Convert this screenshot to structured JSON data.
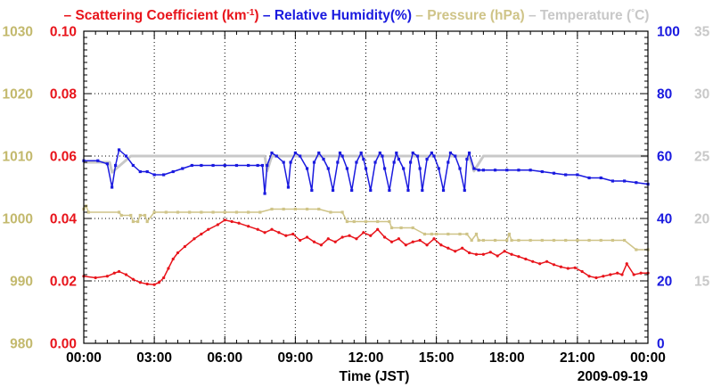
{
  "chart_data": {
    "type": "line",
    "title_parts": [
      {
        "dash": "–",
        "text": "Scattering Coefficient (km",
        "sup": "-1",
        "close": ")",
        "color": "#e8141b"
      },
      {
        "dash": "–",
        "text": "Relative Humidity(%)",
        "color": "#1a1adf"
      },
      {
        "dash": "–",
        "text": "Pressure (hPa)",
        "color": "#cfc488"
      },
      {
        "dash": "–",
        "text": "Temperature (",
        "deg": "°",
        "close": "C)",
        "color": "#c8c8c8"
      }
    ],
    "xlabel": "Time (JST)",
    "date_label": "2009-09-19",
    "x_ticks": [
      "00:00",
      "03:00",
      "06:00",
      "09:00",
      "12:00",
      "15:00",
      "18:00",
      "21:00",
      "00:00"
    ],
    "xlim": [
      0,
      24
    ],
    "axes": {
      "pressure": {
        "ticks": [
          "980",
          "990",
          "1000",
          "1010",
          "1020",
          "1030"
        ],
        "range": [
          980,
          1030
        ],
        "color": "#c3b96d"
      },
      "scattering": {
        "ticks": [
          "0.00",
          "0.02",
          "0.04",
          "0.06",
          "0.08",
          "0.10"
        ],
        "range": [
          0,
          0.1
        ],
        "color": "#e8141b"
      },
      "humidity": {
        "ticks": [
          "0",
          "20",
          "40",
          "60",
          "80",
          "100"
        ],
        "range": [
          0,
          100
        ],
        "color": "#1a1adf"
      },
      "temperature": {
        "ticks": [
          "15",
          "20",
          "25",
          "30",
          "35"
        ],
        "range": [
          10,
          35
        ],
        "color": "#c8c8c8"
      }
    },
    "series": [
      {
        "name": "Scattering Coefficient",
        "axis": "scattering",
        "color": "#e8141b",
        "marker": "dot",
        "x": [
          0,
          0.5,
          1,
          1.3,
          1.5,
          1.8,
          2.1,
          2.4,
          2.7,
          3.0,
          3.2,
          3.4,
          3.6,
          3.8,
          4.0,
          4.3,
          4.7,
          5.0,
          5.3,
          5.7,
          6.0,
          6.3,
          6.6,
          7.0,
          7.4,
          7.7,
          8.0,
          8.3,
          8.6,
          8.9,
          9.2,
          9.5,
          9.8,
          10.1,
          10.4,
          10.7,
          11.0,
          11.3,
          11.6,
          11.9,
          12.2,
          12.5,
          12.8,
          13.1,
          13.4,
          13.7,
          14.0,
          14.3,
          14.6,
          14.9,
          15.2,
          15.5,
          15.8,
          16.1,
          16.4,
          16.7,
          17.0,
          17.3,
          17.6,
          17.9,
          18.2,
          18.5,
          18.8,
          19.1,
          19.4,
          19.7,
          20.0,
          20.3,
          20.6,
          20.9,
          21.2,
          21.5,
          21.8,
          22.1,
          22.4,
          22.7,
          22.9,
          23.1,
          23.4,
          23.7,
          24.0
        ],
        "values": [
          0.0215,
          0.021,
          0.0215,
          0.0225,
          0.023,
          0.022,
          0.0205,
          0.0195,
          0.019,
          0.0188,
          0.0195,
          0.021,
          0.024,
          0.027,
          0.029,
          0.031,
          0.0335,
          0.035,
          0.0365,
          0.038,
          0.0395,
          0.039,
          0.0385,
          0.0375,
          0.0365,
          0.0355,
          0.0365,
          0.0355,
          0.0345,
          0.035,
          0.033,
          0.034,
          0.0325,
          0.0315,
          0.0335,
          0.0325,
          0.034,
          0.0345,
          0.0335,
          0.0355,
          0.0345,
          0.0365,
          0.034,
          0.0325,
          0.0335,
          0.0315,
          0.0325,
          0.033,
          0.0315,
          0.0335,
          0.0315,
          0.0305,
          0.0295,
          0.0305,
          0.029,
          0.0285,
          0.0285,
          0.0292,
          0.028,
          0.0295,
          0.0285,
          0.0278,
          0.027,
          0.0262,
          0.0255,
          0.0262,
          0.0252,
          0.0245,
          0.024,
          0.0242,
          0.023,
          0.0215,
          0.021,
          0.0215,
          0.022,
          0.0225,
          0.022,
          0.0255,
          0.022,
          0.0225,
          0.0225
        ]
      },
      {
        "name": "Relative Humidity",
        "axis": "humidity",
        "color": "#1a1adf",
        "marker": "square",
        "x": [
          0,
          0.6,
          1.0,
          1.2,
          1.35,
          1.5,
          1.8,
          2.1,
          2.4,
          2.7,
          3.0,
          3.4,
          3.8,
          4.2,
          4.6,
          5.0,
          5.5,
          6.0,
          6.5,
          7.0,
          7.4,
          7.6,
          7.7,
          7.8,
          8.0,
          8.2,
          8.5,
          8.7,
          8.8,
          9.0,
          9.2,
          9.5,
          9.7,
          9.8,
          10.0,
          10.2,
          10.4,
          10.6,
          10.8,
          10.9,
          11.0,
          11.2,
          11.4,
          11.6,
          11.8,
          11.9,
          12.0,
          12.2,
          12.4,
          12.6,
          12.7,
          12.8,
          13.0,
          13.2,
          13.3,
          13.4,
          13.6,
          13.8,
          13.9,
          14.0,
          14.2,
          14.3,
          14.4,
          14.6,
          14.8,
          14.9,
          15.1,
          15.3,
          15.5,
          15.6,
          15.8,
          16.0,
          16.2,
          16.3,
          16.4,
          16.6,
          16.8,
          17.0,
          17.5,
          18.0,
          18.5,
          19.0,
          19.5,
          20.0,
          20.5,
          21.0,
          21.5,
          22.0,
          22.5,
          23.0,
          23.5,
          24.0
        ],
        "values": [
          58.5,
          58.5,
          57.5,
          50,
          57,
          62,
          60,
          57,
          55,
          55,
          54,
          54,
          55,
          56,
          57,
          57,
          57,
          57,
          57,
          57,
          57,
          57,
          48,
          57,
          61,
          60,
          58,
          50,
          58,
          61,
          60,
          56,
          49,
          58,
          61,
          59,
          56,
          49,
          58,
          61,
          60,
          56,
          49,
          58,
          61,
          59,
          56,
          49,
          58,
          61,
          60,
          56,
          49,
          58,
          61,
          59,
          56,
          49,
          58,
          61,
          60,
          56,
          49,
          59,
          61,
          60,
          56,
          49,
          58,
          61,
          60,
          56,
          49,
          59,
          61,
          56,
          55.5,
          55.5,
          55.5,
          55.5,
          55.5,
          55.5,
          55,
          54.5,
          54,
          54,
          53,
          53,
          52,
          52,
          51.5,
          51
        ]
      },
      {
        "name": "Pressure",
        "axis": "pressure",
        "color": "#cfc488",
        "marker": "square",
        "x": [
          0,
          0.1,
          0.2,
          1.5,
          1.6,
          2.0,
          2.1,
          2.3,
          2.4,
          2.6,
          2.7,
          3.0,
          3.5,
          4.0,
          4.5,
          5.0,
          5.5,
          6.0,
          6.5,
          7.0,
          7.5,
          8.0,
          8.5,
          9.0,
          9.5,
          10.0,
          10.5,
          11.0,
          11.2,
          11.5,
          12.0,
          12.5,
          13.0,
          13.1,
          13.5,
          14.0,
          14.5,
          14.8,
          15.0,
          15.5,
          16.0,
          16.3,
          16.5,
          16.7,
          16.8,
          17.0,
          17.5,
          18.0,
          18.1,
          18.2,
          18.5,
          19.0,
          19.5,
          20.0,
          20.5,
          21.0,
          21.5,
          22.0,
          22.5,
          23.0,
          23.5,
          24.0
        ],
        "values": [
          1001.5,
          1002,
          1001,
          1001,
          1000.5,
          1000.5,
          999.5,
          999.5,
          1000.5,
          1000.5,
          999.5,
          1001,
          1001,
          1001,
          1001,
          1001,
          1001,
          1001,
          1001,
          1001,
          1001,
          1001.5,
          1001.5,
          1001.5,
          1001.5,
          1001.5,
          1001,
          1001,
          999.5,
          999.5,
          999.5,
          999.5,
          999.5,
          998.5,
          998.5,
          998.5,
          997.5,
          997.5,
          997.5,
          997.5,
          997.5,
          997.5,
          996.5,
          997.5,
          996.5,
          996.5,
          996.5,
          996.5,
          997.5,
          996.5,
          996.5,
          996.5,
          996.5,
          996.5,
          996.5,
          996.5,
          996.5,
          996.5,
          996.5,
          996.5,
          995,
          995
        ]
      },
      {
        "name": "Temperature",
        "axis": "temperature",
        "color": "#c8c8c8",
        "marker": "none",
        "x": [
          0,
          1.1,
          1.2,
          2.0,
          7.0,
          7.7,
          7.8,
          8.0,
          16.4,
          16.6,
          17.0,
          24.0
        ],
        "values": [
          24.5,
          24.5,
          23.7,
          25,
          25,
          25,
          23.8,
          25,
          25,
          23.8,
          25,
          25
        ]
      }
    ]
  }
}
